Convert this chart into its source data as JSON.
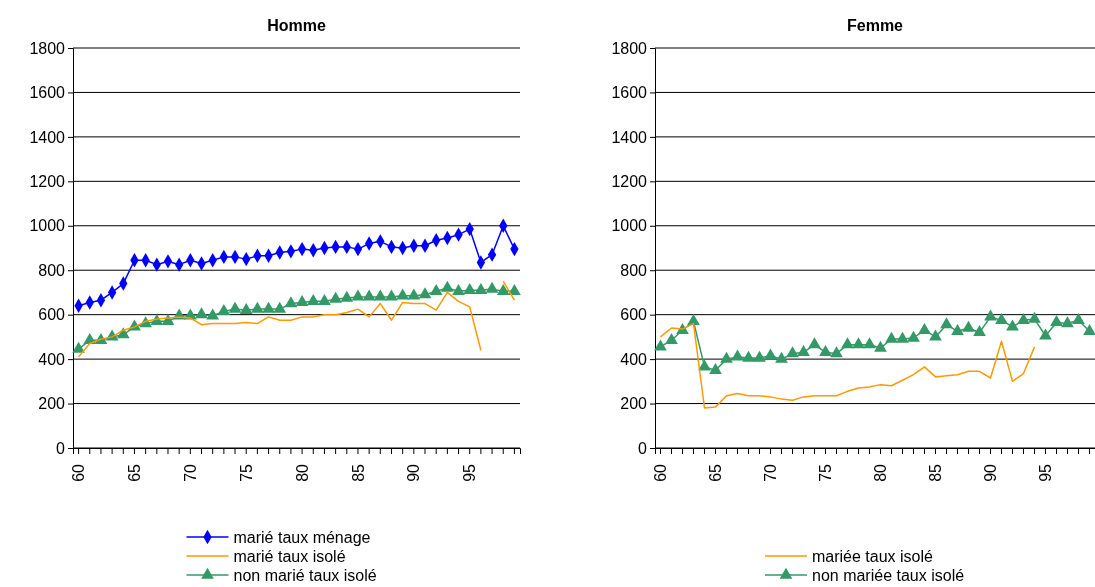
{
  "chart_data": [
    {
      "type": "line",
      "title": "Homme",
      "categories": [
        "60",
        null,
        null,
        null,
        null,
        "65",
        null,
        null,
        null,
        null,
        "70",
        null,
        null,
        null,
        null,
        "75",
        null,
        null,
        null,
        null,
        "80",
        null,
        null,
        null,
        null,
        "85",
        null,
        null,
        null,
        null,
        "90",
        null,
        null,
        null,
        null,
        "95",
        null,
        null,
        null,
        null
      ],
      "ylim": [
        0,
        1800
      ],
      "yticks": [
        0,
        200,
        400,
        600,
        800,
        1000,
        1200,
        1400,
        1600,
        1800
      ],
      "grid": "y",
      "legend": "bottom",
      "series": [
        {
          "name": "marié taux ménage",
          "color": "#0000ff",
          "marker": "diamond",
          "values": [
            640,
            655,
            665,
            700,
            740,
            845,
            845,
            825,
            840,
            825,
            845,
            830,
            845,
            860,
            860,
            850,
            865,
            865,
            880,
            885,
            895,
            890,
            900,
            905,
            905,
            895,
            920,
            930,
            905,
            900,
            910,
            910,
            935,
            945,
            960,
            985,
            835,
            870,
            1000,
            895
          ]
        },
        {
          "name": "marié taux isolé",
          "color": "#ff9900",
          "marker": "none",
          "values": [
            410,
            470,
            490,
            500,
            530,
            545,
            570,
            580,
            585,
            590,
            585,
            555,
            560,
            560,
            560,
            565,
            560,
            590,
            575,
            575,
            590,
            590,
            600,
            600,
            610,
            625,
            590,
            650,
            575,
            655,
            650,
            650,
            620,
            700,
            660,
            635,
            440,
            null,
            750,
            665
          ]
        },
        {
          "name": "non marié taux isolé",
          "color": "#339966",
          "marker": "triangle",
          "values": [
            445,
            485,
            485,
            500,
            510,
            545,
            560,
            570,
            570,
            595,
            595,
            600,
            595,
            615,
            625,
            620,
            625,
            625,
            625,
            650,
            655,
            660,
            660,
            670,
            675,
            680,
            680,
            680,
            680,
            685,
            685,
            690,
            705,
            720,
            705,
            710,
            710,
            715,
            705,
            705
          ]
        }
      ]
    },
    {
      "type": "line",
      "title": "Femme",
      "categories": [
        "60",
        null,
        null,
        null,
        null,
        "65",
        null,
        null,
        null,
        null,
        "70",
        null,
        null,
        null,
        null,
        "75",
        null,
        null,
        null,
        null,
        "80",
        null,
        null,
        null,
        null,
        "85",
        null,
        null,
        null,
        null,
        "90",
        null,
        null,
        null,
        null,
        "95",
        null,
        null,
        null,
        null
      ],
      "ylim": [
        0,
        1800
      ],
      "yticks": [
        0,
        200,
        400,
        600,
        800,
        1000,
        1200,
        1400,
        1600,
        1800
      ],
      "grid": "y",
      "legend": "bottom",
      "series": [
        {
          "name": "mariée taux isolé",
          "color": "#ff9900",
          "marker": "none",
          "values": [
            500,
            540,
            535,
            560,
            180,
            185,
            235,
            245,
            235,
            235,
            230,
            220,
            215,
            230,
            235,
            235,
            235,
            255,
            270,
            275,
            285,
            280,
            305,
            330,
            365,
            320,
            325,
            330,
            345,
            345,
            315,
            480,
            300,
            335,
            455,
            null,
            null,
            null,
            null,
            null
          ]
        },
        {
          "name": "non mariée taux isolé",
          "color": "#339966",
          "marker": "triangle",
          "values": [
            455,
            485,
            530,
            570,
            365,
            350,
            400,
            410,
            405,
            405,
            415,
            400,
            425,
            430,
            465,
            430,
            425,
            465,
            465,
            465,
            450,
            490,
            490,
            495,
            530,
            500,
            555,
            525,
            540,
            520,
            590,
            575,
            545,
            575,
            580,
            505,
            565,
            560,
            575,
            525
          ]
        }
      ]
    }
  ]
}
